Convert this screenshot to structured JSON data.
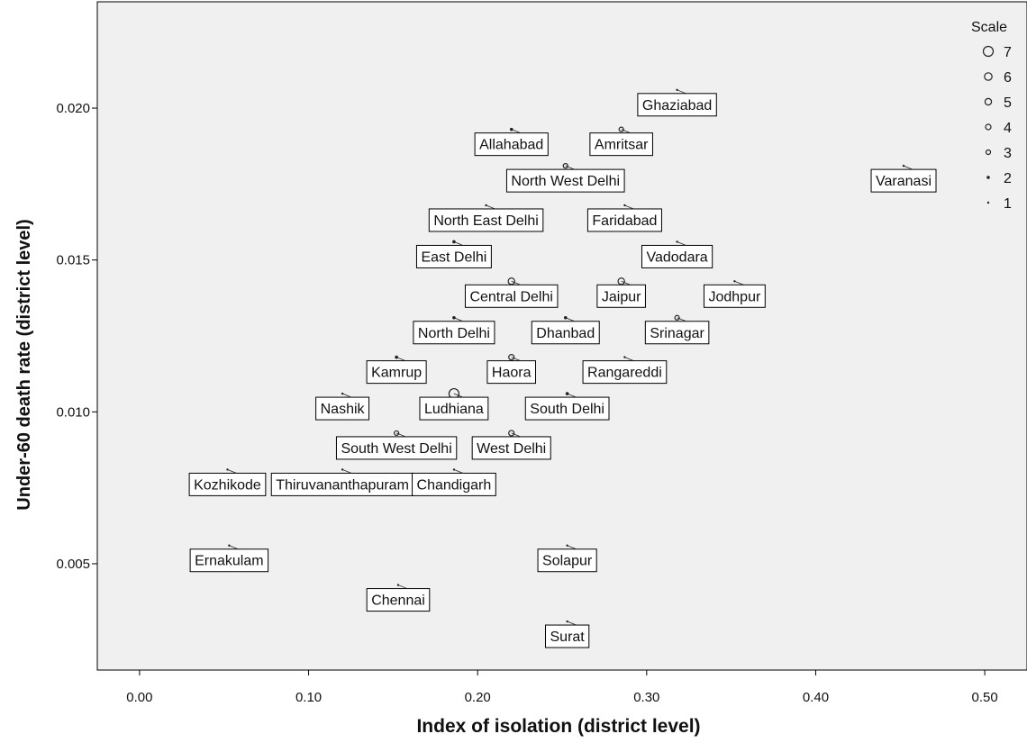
{
  "chart_data": {
    "type": "scatter",
    "xlabel": "Index of isolation (district level)",
    "ylabel": "Under-60 death rate (district level)",
    "xlim": [
      -0.025,
      0.525
    ],
    "ylim": [
      0.0015,
      0.0235
    ],
    "x_ticks": [
      0.0,
      0.1,
      0.2,
      0.3,
      0.4,
      0.5
    ],
    "x_tick_labels": [
      "0.00",
      "0.10",
      "0.20",
      "0.30",
      "0.40",
      "0.50"
    ],
    "y_ticks": [
      0.005,
      0.01,
      0.015,
      0.02
    ],
    "y_tick_labels": [
      "0.005",
      "0.010",
      "0.015",
      "0.020"
    ],
    "grid": false,
    "legend": {
      "title": "Scale",
      "placement": "top-right",
      "items": [
        {
          "label": "7",
          "scale": 7
        },
        {
          "label": "6",
          "scale": 6
        },
        {
          "label": "5",
          "scale": 5
        },
        {
          "label": "4",
          "scale": 4
        },
        {
          "label": "3",
          "scale": 3
        },
        {
          "label": "2",
          "scale": 2
        },
        {
          "label": "1",
          "scale": 1
        }
      ]
    },
    "points": [
      {
        "label": "Ghaziabad",
        "x": 0.318,
        "y": 0.0206,
        "scale": 1
      },
      {
        "label": "Allahabad",
        "x": 0.22,
        "y": 0.0193,
        "scale": 2
      },
      {
        "label": "Amritsar",
        "x": 0.285,
        "y": 0.0193,
        "scale": 3
      },
      {
        "label": "North West Delhi",
        "x": 0.252,
        "y": 0.0181,
        "scale": 3
      },
      {
        "label": "Varanasi",
        "x": 0.452,
        "y": 0.0181,
        "scale": 1
      },
      {
        "label": "North East Delhi",
        "x": 0.205,
        "y": 0.0168,
        "scale": 1
      },
      {
        "label": "Faridabad",
        "x": 0.287,
        "y": 0.0168,
        "scale": 1
      },
      {
        "label": "Vadodara",
        "x": 0.318,
        "y": 0.0156,
        "scale": 1
      },
      {
        "label": "East Delhi",
        "x": 0.186,
        "y": 0.0156,
        "scale": 2
      },
      {
        "label": "Central Delhi",
        "x": 0.22,
        "y": 0.0143,
        "scale": 5
      },
      {
        "label": "Jaipur",
        "x": 0.285,
        "y": 0.0143,
        "scale": 5
      },
      {
        "label": "Jodhpur",
        "x": 0.352,
        "y": 0.0143,
        "scale": 1
      },
      {
        "label": "North Delhi",
        "x": 0.186,
        "y": 0.0131,
        "scale": 2
      },
      {
        "label": "Dhanbad",
        "x": 0.252,
        "y": 0.0131,
        "scale": 2
      },
      {
        "label": "Srinagar",
        "x": 0.318,
        "y": 0.0131,
        "scale": 3
      },
      {
        "label": "Kamrup",
        "x": 0.152,
        "y": 0.0118,
        "scale": 2
      },
      {
        "label": "Haora",
        "x": 0.22,
        "y": 0.0118,
        "scale": 4
      },
      {
        "label": "Rangareddi",
        "x": 0.287,
        "y": 0.0118,
        "scale": 1
      },
      {
        "label": "Ludhiana",
        "x": 0.186,
        "y": 0.0106,
        "scale": 7
      },
      {
        "label": "Nashik",
        "x": 0.12,
        "y": 0.0106,
        "scale": 1
      },
      {
        "label": "South Delhi",
        "x": 0.253,
        "y": 0.0106,
        "scale": 2
      },
      {
        "label": "South West Delhi",
        "x": 0.152,
        "y": 0.0093,
        "scale": 3
      },
      {
        "label": "West Delhi",
        "x": 0.22,
        "y": 0.0093,
        "scale": 4
      },
      {
        "label": "Kozhikode",
        "x": 0.052,
        "y": 0.0081,
        "scale": 1
      },
      {
        "label": "Thiruvananthapuram",
        "x": 0.12,
        "y": 0.0081,
        "scale": 1
      },
      {
        "label": "Chandigarh",
        "x": 0.186,
        "y": 0.0081,
        "scale": 1
      },
      {
        "label": "Ernakulam",
        "x": 0.053,
        "y": 0.0056,
        "scale": 1
      },
      {
        "label": "Solapur",
        "x": 0.253,
        "y": 0.0056,
        "scale": 1
      },
      {
        "label": "Chennai",
        "x": 0.153,
        "y": 0.0043,
        "scale": 1
      },
      {
        "label": "Surat",
        "x": 0.253,
        "y": 0.0031,
        "scale": 1
      }
    ]
  }
}
